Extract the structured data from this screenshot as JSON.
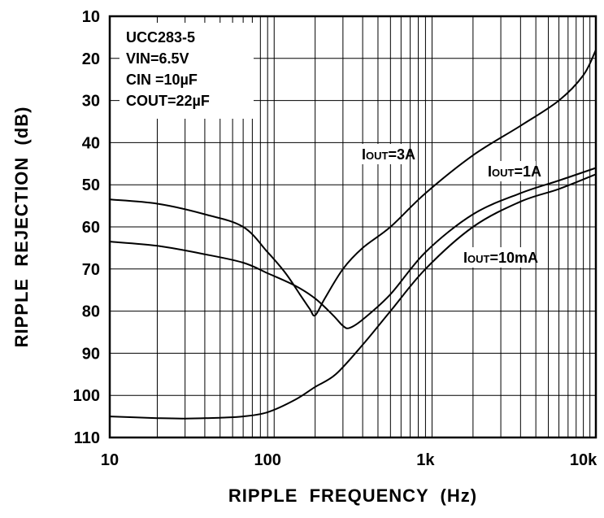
{
  "chart_data": {
    "type": "line",
    "title": "",
    "xlabel": "RIPPLE  FREQUENCY  (Hz)",
    "ylabel": "RIPPLE  REJECTION  (dB)",
    "x_scale": "log",
    "xlim": [
      10,
      12000
    ],
    "ylim": [
      10,
      110
    ],
    "y_inverted": true,
    "grid": true,
    "x_ticks": [
      {
        "value": 10,
        "label": "10"
      },
      {
        "value": 100,
        "label": "100"
      },
      {
        "value": 1000,
        "label": "1k"
      },
      {
        "value": 10000,
        "label": "10k"
      }
    ],
    "y_ticks": [
      10,
      20,
      30,
      40,
      50,
      60,
      70,
      80,
      90,
      100,
      110
    ],
    "conditions": [
      "UCC283-5",
      "VIN=6.5V",
      "CIN =10µF",
      "COUT=22µF"
    ],
    "series": [
      {
        "name": "IOUT=3A",
        "label_main": "I",
        "label_sub": "OUT",
        "label_rest": "=3A",
        "x": [
          10,
          20,
          40,
          70,
          100,
          130,
          160,
          185,
          200,
          230,
          300,
          400,
          600,
          1000,
          2000,
          4000,
          7000,
          10000,
          12000
        ],
        "y": [
          53.5,
          54.5,
          57,
          60,
          66,
          71,
          76,
          79.5,
          81,
          77,
          70,
          65,
          60,
          52,
          43,
          36,
          30,
          24,
          18
        ]
      },
      {
        "name": "IOUT=1A",
        "label_main": "I",
        "label_sub": "OUT",
        "label_rest": "=1A",
        "x": [
          10,
          20,
          40,
          70,
          100,
          150,
          200,
          260,
          300,
          330,
          400,
          600,
          1000,
          2000,
          4000,
          7000,
          12000
        ],
        "y": [
          63.5,
          64.5,
          66.5,
          68.5,
          71,
          74,
          77,
          81,
          83.5,
          84,
          82,
          76,
          66,
          57,
          52,
          49,
          46
        ]
      },
      {
        "name": "IOUT=10mA",
        "label_main": "I",
        "label_sub": "OUT",
        "label_rest": "=10mA",
        "x": [
          10,
          20,
          30,
          50,
          70,
          100,
          150,
          200,
          270,
          400,
          600,
          1000,
          2000,
          4000,
          7000,
          12000
        ],
        "y": [
          105,
          105.4,
          105.5,
          105.3,
          105,
          104,
          101,
          98,
          95,
          88,
          80,
          70,
          60,
          54,
          51,
          47.5
        ]
      }
    ]
  }
}
